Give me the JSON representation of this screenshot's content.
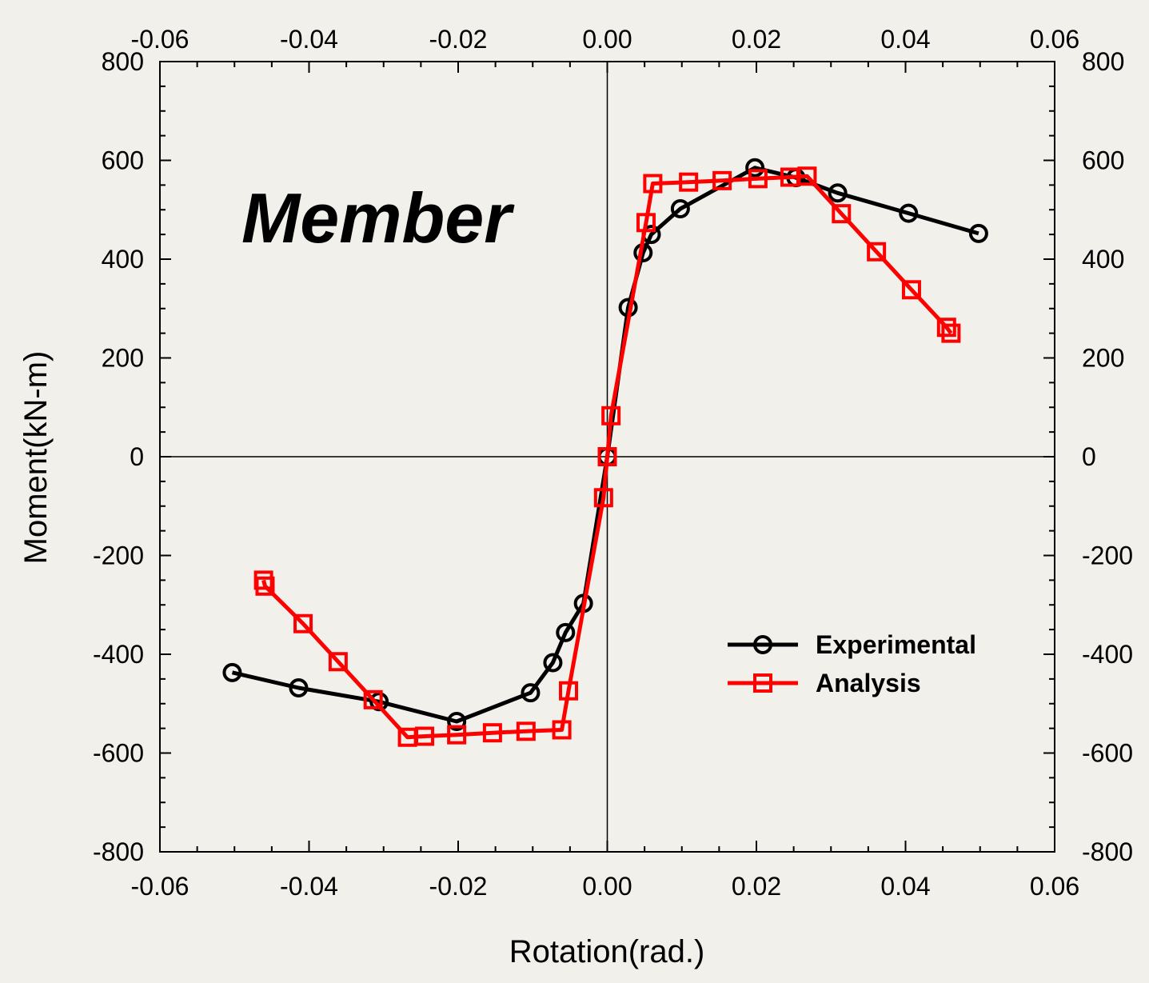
{
  "chart_data": {
    "type": "line",
    "annotation": "Member",
    "xlabel": "Rotation(rad.)",
    "ylabel": "Moment(kN-m)",
    "xlim": [
      -0.06,
      0.06
    ],
    "ylim": [
      -800,
      800
    ],
    "xticks": [
      -0.06,
      -0.04,
      -0.02,
      0.0,
      0.02,
      0.04,
      0.06
    ],
    "xtick_labels": [
      "-0.06",
      "-0.04",
      "-0.02",
      "0.00",
      "0.02",
      "0.04",
      "0.06"
    ],
    "yticks": [
      800,
      600,
      400,
      200,
      0,
      -200,
      -400,
      -600,
      -800
    ],
    "ytick_labels": [
      "800",
      "600",
      "400",
      "200",
      "0",
      "-200",
      "-400",
      "-600",
      "-800"
    ],
    "grid": false,
    "zero_lines": true,
    "legend_position": "lower-right",
    "series": [
      {
        "name": "Experimental",
        "color": "#000000",
        "marker": "circle",
        "x": [
          -0.0503,
          -0.0414,
          -0.0306,
          -0.0202,
          -0.0103,
          -0.0073,
          -0.0056,
          -0.0032,
          0.0,
          0.0028,
          0.0048,
          0.0059,
          0.0098,
          0.0198,
          0.0253,
          0.0309,
          0.0404,
          0.0498
        ],
        "y": [
          -437,
          -468,
          -496,
          -536,
          -478,
          -417,
          -356,
          -297,
          0,
          302,
          413,
          450,
          502,
          585,
          565,
          534,
          493,
          452
        ]
      },
      {
        "name": "Analysis",
        "color": "#ff0000",
        "marker": "square",
        "x": [
          -0.0461,
          -0.0459,
          -0.0408,
          -0.0361,
          -0.0314,
          -0.0268,
          -0.0245,
          -0.0202,
          -0.0154,
          -0.0109,
          -0.0061,
          -0.0052,
          -0.0005,
          0.0,
          0.0005,
          0.0052,
          0.0061,
          0.0109,
          0.0154,
          0.0202,
          0.0245,
          0.0268,
          0.0314,
          0.0361,
          0.0408,
          0.0455,
          0.0461
        ],
        "y": [
          -250,
          -262,
          -338,
          -415,
          -492,
          -568,
          -566,
          -563,
          -559,
          -556,
          -553,
          -474,
          -83,
          0,
          83,
          474,
          553,
          556,
          559,
          563,
          566,
          568,
          492,
          415,
          338,
          262,
          250
        ]
      }
    ]
  }
}
